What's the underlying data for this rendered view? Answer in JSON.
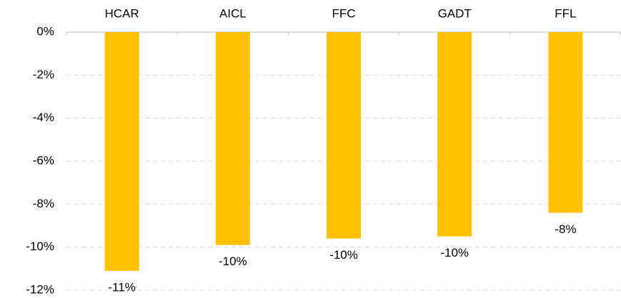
{
  "chart_data": {
    "type": "bar",
    "categories": [
      "HCAR",
      "AICL",
      "FFC",
      "GADT",
      "FFL"
    ],
    "values": [
      -11.1,
      -9.9,
      -9.6,
      -9.5,
      -8.4
    ],
    "value_labels": [
      "-11%",
      "-10%",
      "-10%",
      "-10%",
      "-8%"
    ],
    "color": "#ffc000",
    "ylim": [
      -12,
      0
    ],
    "yticks": [
      {
        "value": 0,
        "label": "0%"
      },
      {
        "value": -2,
        "label": "-2%"
      },
      {
        "value": -4,
        "label": "-4%"
      },
      {
        "value": -6,
        "label": "-6%"
      },
      {
        "value": -8,
        "label": "-8%"
      },
      {
        "value": -10,
        "label": "-10%"
      },
      {
        "value": -12,
        "label": "-12%"
      }
    ],
    "grid": true
  }
}
